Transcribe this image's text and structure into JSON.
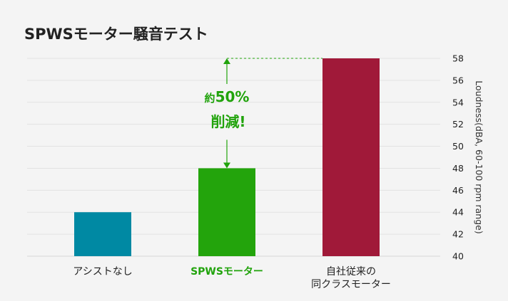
{
  "chart_data": {
    "type": "bar",
    "title": "SPWSモーター騒音テスト",
    "categories": [
      "アシストなし",
      "SPWSモーター",
      "自社従来の\n同クラスモーター"
    ],
    "values": [
      44,
      48,
      58
    ],
    "colors": [
      "#0089a3",
      "#23a40c",
      "#a01939"
    ],
    "highlight_category_color": "#21a30c",
    "ylabel": "Loudness(dBA, 60-100 rpm range)",
    "ylim": [
      40,
      58
    ],
    "yticks": [
      40,
      42,
      44,
      46,
      48,
      50,
      52,
      54,
      56,
      58
    ],
    "y_axis_side": "right",
    "grid": true,
    "annotation": {
      "prefix": "約",
      "percent": "50%",
      "line2": "削減!",
      "color": "#21a30c"
    }
  }
}
